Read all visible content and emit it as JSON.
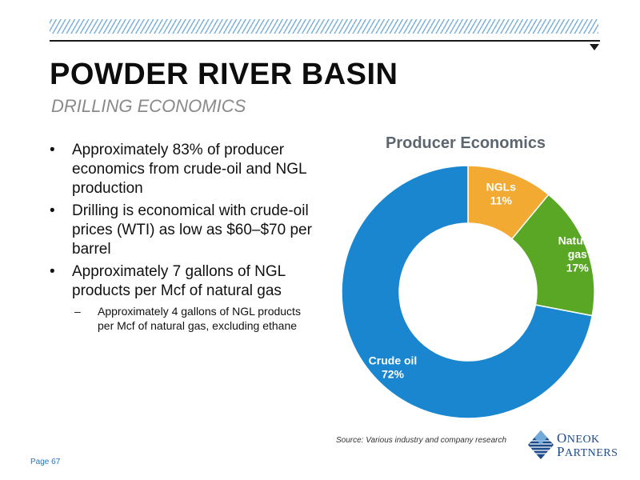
{
  "header": {
    "title": "POWDER RIVER BASIN",
    "subtitle": "DRILLING ECONOMICS"
  },
  "bullets": [
    {
      "text": "Approximately 83% of producer economics from crude-oil and NGL production"
    },
    {
      "text": "Drilling is economical with crude-oil prices (WTI) as low as $60–$70 per barrel"
    },
    {
      "text": "Approximately 7 gallons of NGL products per Mcf of natural gas",
      "sub": "Approximately 4 gallons of NGL products per Mcf of natural gas, excluding ethane"
    }
  ],
  "bullet_symbol": "•",
  "sub_symbol": "–",
  "chart_data": {
    "type": "pie",
    "title": "Producer Economics",
    "donut": true,
    "categories": [
      "NGLs",
      "Natural gas",
      "Crude oil"
    ],
    "values": [
      11,
      17,
      72
    ],
    "value_labels": [
      "11%",
      "17%",
      "72%"
    ],
    "colors": [
      "#f2aa33",
      "#5aa726",
      "#1a86cf"
    ],
    "label_lines": [
      [
        "NGLs",
        "11%"
      ],
      [
        "Natural",
        "gas",
        "17%"
      ],
      [
        "Crude oil",
        "72%"
      ]
    ],
    "label_color": "#ffffff"
  },
  "footer": {
    "source": "Source: Various industry and company research",
    "page": "Page 67"
  },
  "logo": {
    "line1_first": "O",
    "line1_rest": "NEOK",
    "line2_first": "P",
    "line2_rest": "ARTNERS",
    "colors": [
      "#1b4b8a",
      "#3f8fd0",
      "#7fbbe6"
    ]
  }
}
